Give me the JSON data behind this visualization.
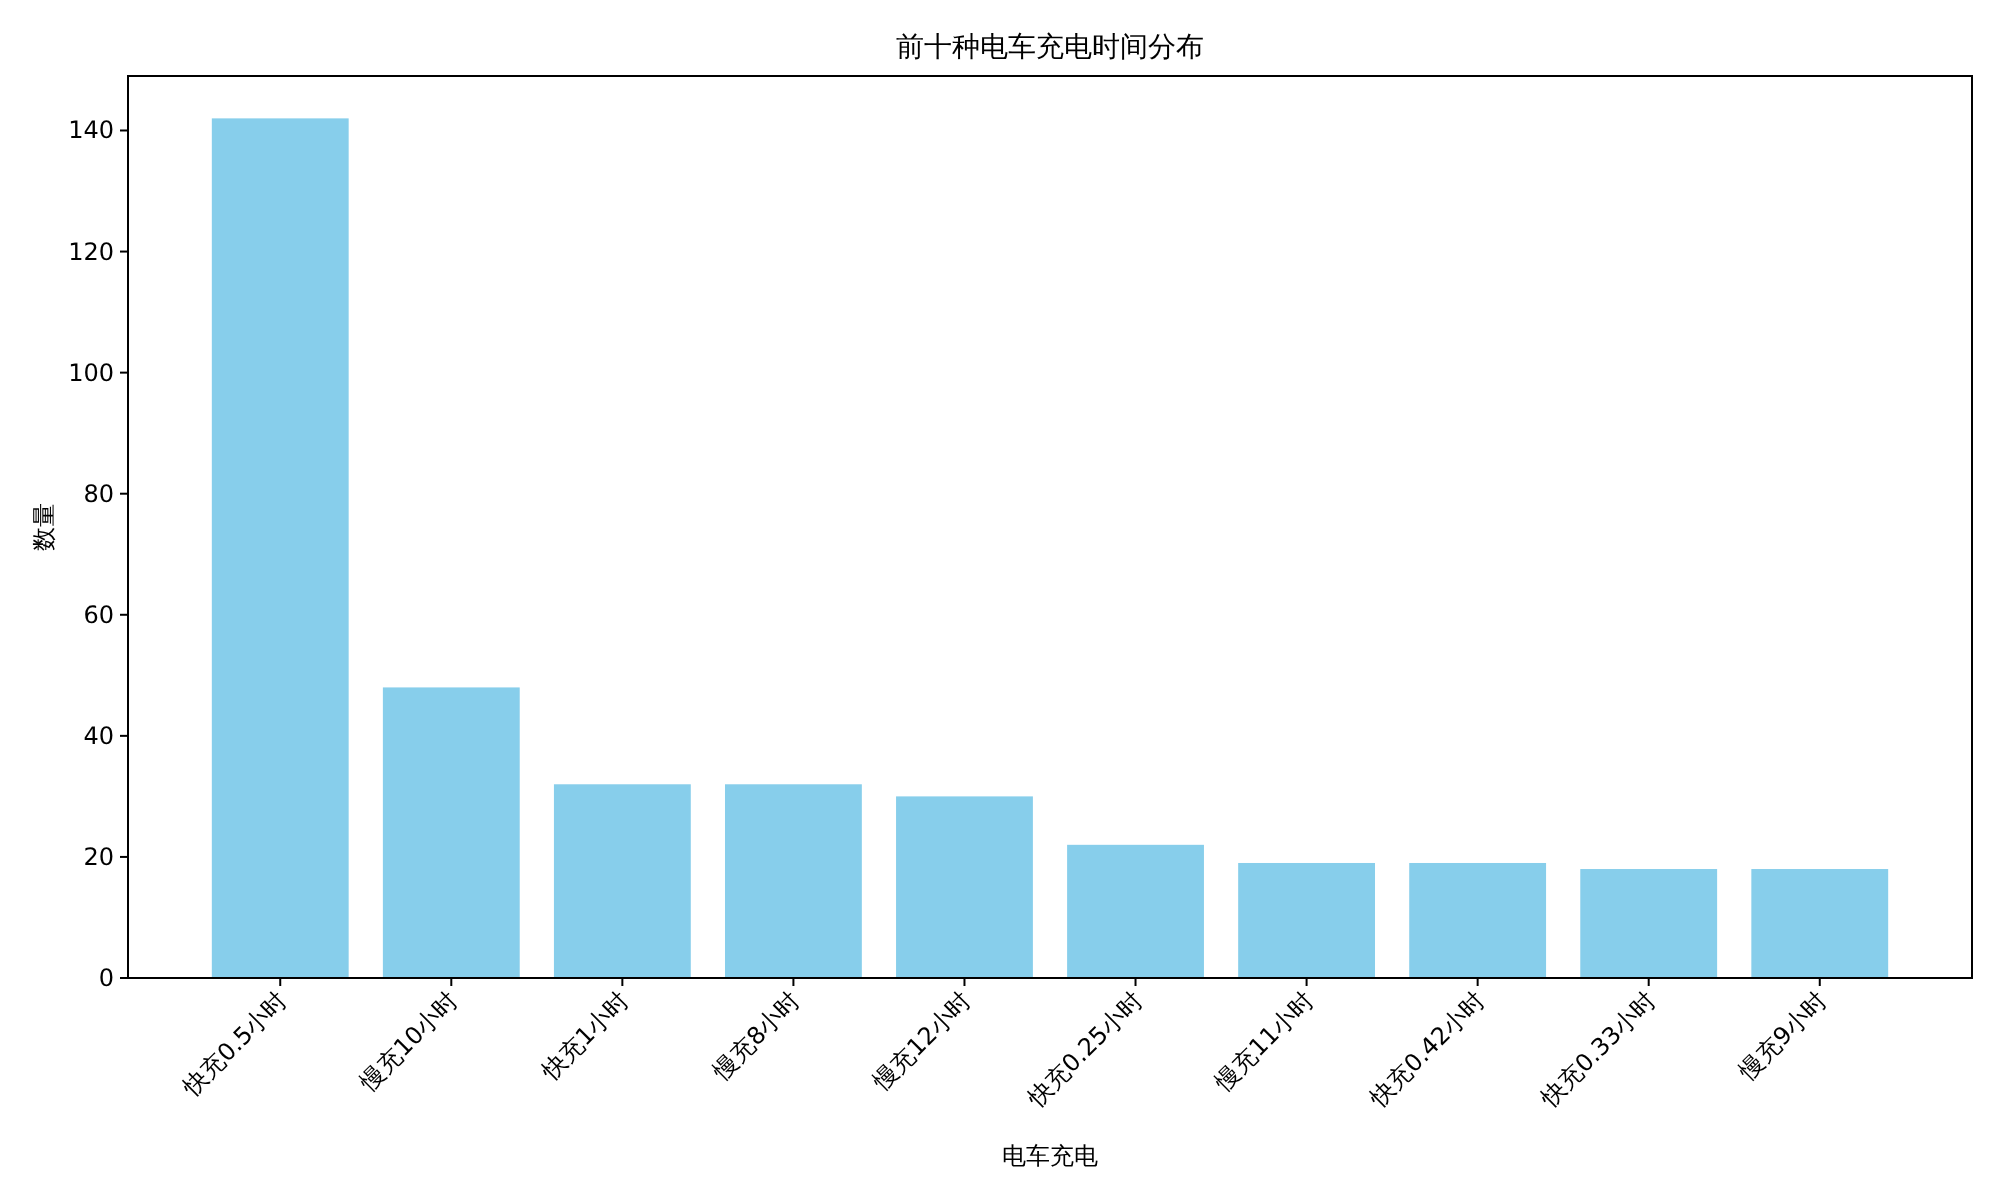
{
  "chart_data": {
    "type": "bar",
    "title": "前十种电车充电时间分布",
    "xlabel": "电车充电",
    "ylabel": "数量",
    "categories": [
      "快充0.5小时",
      "慢充10小时",
      "快充1小时",
      "慢充8小时",
      "慢充12小时",
      "快充0.25小时",
      "慢充11小时",
      "快充0.42小时",
      "快充0.33小时",
      "慢充9小时"
    ],
    "values": [
      142,
      48,
      32,
      32,
      30,
      22,
      19,
      19,
      18,
      18
    ],
    "color": "#87ceeb",
    "ylim": [
      0,
      149
    ],
    "yticks": [
      0,
      20,
      40,
      60,
      80,
      100,
      120,
      140
    ]
  }
}
